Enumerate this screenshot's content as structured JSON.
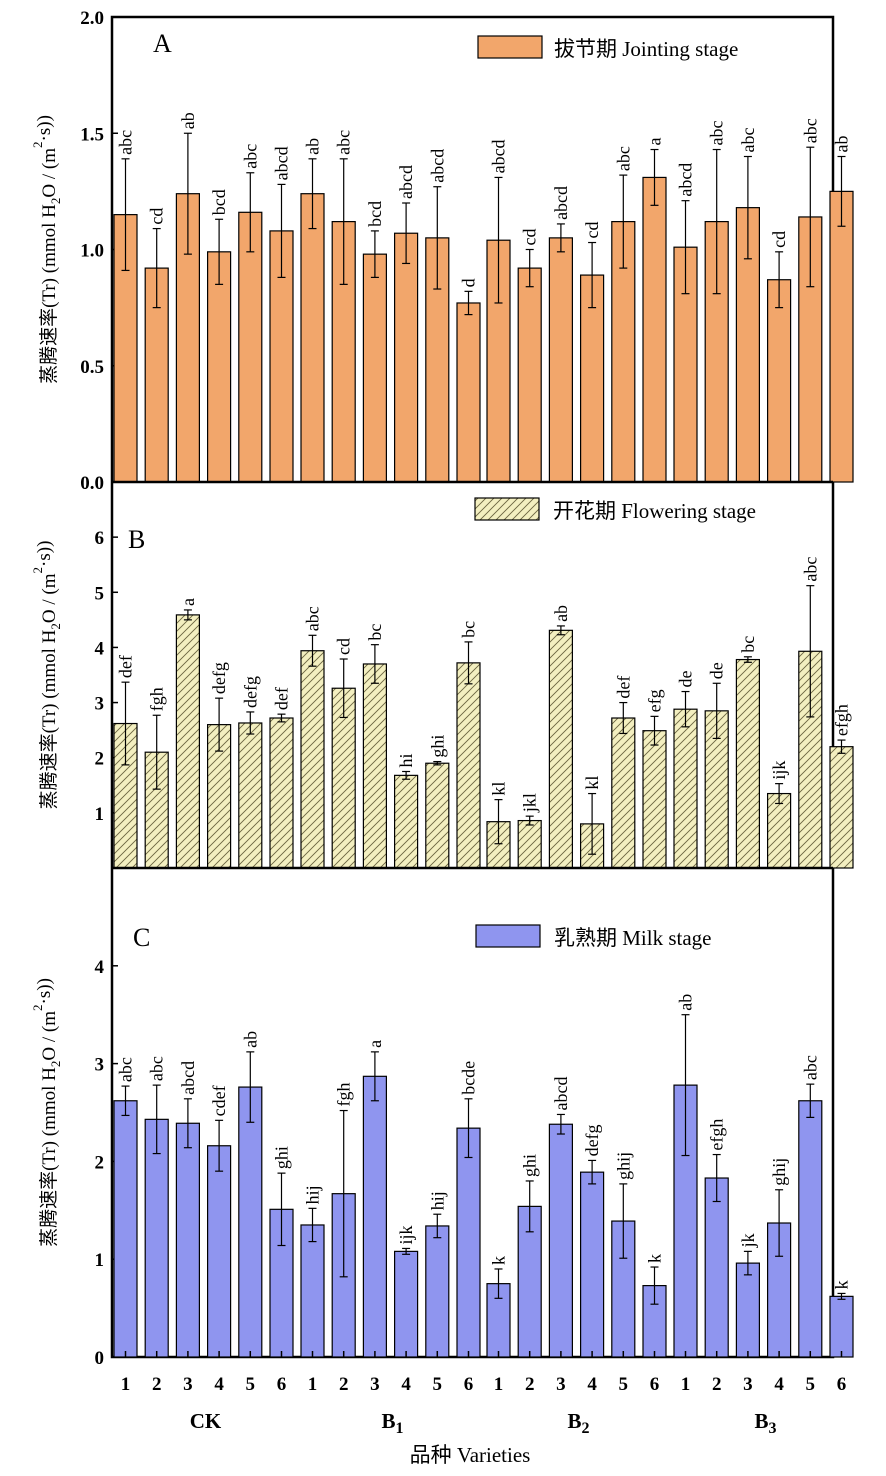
{
  "chart_data": [
    {
      "type": "bar",
      "panel": "A",
      "legend": "拔节期 Jointing stage",
      "legend_position": "top-right",
      "ylabel": "蒸腾速率(Tr) (mmol H2O / (m²·s))",
      "ylim": [
        0,
        2.0
      ],
      "yticks": [
        "0.0",
        "0.5",
        "1.0",
        "1.5",
        "2.0"
      ],
      "color": "#f2a66b",
      "hatch": false,
      "groups": [
        "CK",
        "B1",
        "B2",
        "B3"
      ],
      "values": [
        [
          1.15,
          0.92,
          1.24,
          0.99,
          1.16,
          1.08
        ],
        [
          1.24,
          1.12,
          0.98,
          1.07,
          1.05,
          0.77
        ],
        [
          1.04,
          0.92,
          1.05,
          0.89,
          1.12,
          1.31
        ],
        [
          1.01,
          1.12,
          1.18,
          0.87,
          1.14,
          1.25
        ]
      ],
      "errors": [
        [
          0.24,
          0.17,
          0.26,
          0.14,
          0.17,
          0.2
        ],
        [
          0.15,
          0.27,
          0.1,
          0.13,
          0.22,
          0.05
        ],
        [
          0.27,
          0.08,
          0.06,
          0.14,
          0.2,
          0.12
        ],
        [
          0.2,
          0.31,
          0.22,
          0.12,
          0.3,
          0.15
        ]
      ],
      "letters": [
        [
          "abc",
          "cd",
          "ab",
          "bcd",
          "abc",
          "abcd"
        ],
        [
          "ab",
          "abc",
          "bcd",
          "abcd",
          "abcd",
          "d"
        ],
        [
          "abcd",
          "cd",
          "abcd",
          "cd",
          "abc",
          "a"
        ],
        [
          "abcd",
          "abc",
          "abc",
          "cd",
          "abc",
          "ab"
        ]
      ]
    },
    {
      "type": "bar",
      "panel": "B",
      "legend": "开花期 Flowering stage",
      "legend_position": "top-right",
      "ylabel": "蒸腾速率(Tr) (mmol H2O / (m²·s))",
      "ylim": [
        0,
        7
      ],
      "yticks": [
        "1",
        "2",
        "3",
        "4",
        "5",
        "6"
      ],
      "color": "#f3efc0",
      "hatch": true,
      "groups": [
        "CK",
        "B1",
        "B2",
        "B3"
      ],
      "values": [
        [
          2.62,
          2.1,
          4.59,
          2.6,
          2.63,
          2.72
        ],
        [
          3.94,
          3.26,
          3.7,
          1.68,
          1.9,
          3.72
        ],
        [
          0.84,
          0.86,
          4.31,
          0.8,
          2.72,
          2.49
        ],
        [
          2.88,
          2.85,
          3.78,
          1.35,
          3.93,
          2.2
        ]
      ],
      "errors": [
        [
          0.75,
          0.67,
          0.09,
          0.48,
          0.2,
          0.07
        ],
        [
          0.28,
          0.53,
          0.35,
          0.07,
          0.03,
          0.38
        ],
        [
          0.4,
          0.08,
          0.08,
          0.55,
          0.28,
          0.26
        ],
        [
          0.32,
          0.5,
          0.05,
          0.18,
          1.19,
          0.12
        ]
      ],
      "letters": [
        [
          "def",
          "fgh",
          "a",
          "defg",
          "defg",
          "def"
        ],
        [
          "abc",
          "cd",
          "bc",
          "hi",
          "ghi",
          "bc"
        ],
        [
          "kl",
          "jkl",
          "ab",
          "kl",
          "def",
          "efg"
        ],
        [
          "de",
          "de",
          "bc",
          "ijk",
          "abc",
          "efgh"
        ]
      ]
    },
    {
      "type": "bar",
      "panel": "C",
      "legend": "乳熟期 Milk stage",
      "legend_position": "top-right",
      "ylabel": "蒸腾速率(Tr) (mmol H2O / (m²·s))",
      "ylim": [
        0,
        5
      ],
      "yticks": [
        "0",
        "1",
        "2",
        "3",
        "4"
      ],
      "color": "#8f95ef",
      "hatch": false,
      "groups": [
        "CK",
        "B1",
        "B2",
        "B3"
      ],
      "values": [
        [
          2.62,
          2.43,
          2.39,
          2.16,
          2.76,
          1.51
        ],
        [
          1.35,
          1.67,
          2.87,
          1.08,
          1.34,
          2.34
        ],
        [
          0.75,
          1.54,
          2.38,
          1.89,
          1.39,
          0.73
        ],
        [
          2.78,
          1.83,
          0.96,
          1.37,
          2.62,
          0.62
        ]
      ],
      "errors": [
        [
          0.15,
          0.35,
          0.25,
          0.26,
          0.36,
          0.37
        ],
        [
          0.17,
          0.85,
          0.25,
          0.03,
          0.12,
          0.3
        ],
        [
          0.15,
          0.26,
          0.1,
          0.12,
          0.38,
          0.19
        ],
        [
          0.72,
          0.24,
          0.12,
          0.34,
          0.17,
          0.03
        ]
      ],
      "letters": [
        [
          "abc",
          "abc",
          "abcd",
          "cdef",
          "ab",
          "ghi"
        ],
        [
          "hij",
          "fgh",
          "a",
          "ijk",
          "hij",
          "bcde"
        ],
        [
          "k",
          "ghi",
          "abcd",
          "defg",
          "ghij",
          "k"
        ],
        [
          "ab",
          "efgh",
          "jk",
          "ghij",
          "abc",
          "k"
        ]
      ]
    }
  ],
  "x_axis": {
    "ticks": [
      "1",
      "2",
      "3",
      "4",
      "5",
      "6"
    ],
    "groups": [
      "CK",
      "B1",
      "B2",
      "B3"
    ],
    "label": "品种 Varieties"
  }
}
